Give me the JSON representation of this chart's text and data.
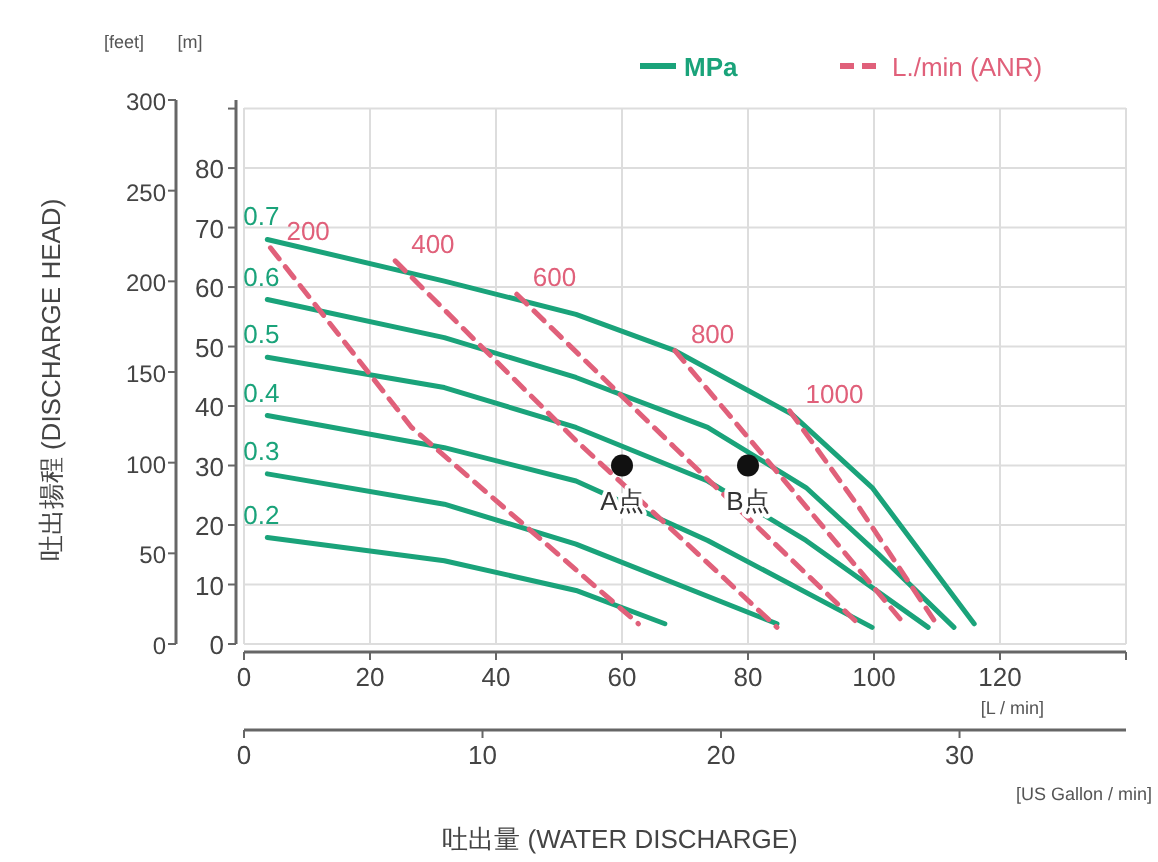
{
  "chart_data": {
    "type": "line",
    "xlabel": "吐出量 (WATER DISCHARGE)",
    "ylabel": "吐出揚程 (DISCHARGE HEAD)",
    "y2label": "[m]",
    "x2label": "[US Gallon / min]",
    "xlim": [
      0,
      140
    ],
    "xticks": [
      0,
      20,
      40,
      60,
      80,
      100,
      120,
      {
        "value": 140,
        "label": null
      }
    ],
    "ylim": [
      0,
      300
    ],
    "yticks": [
      0,
      50,
      100,
      150,
      200,
      250,
      300
    ],
    "y2lim": [
      0,
      91.44
    ],
    "y2ticks": [
      0,
      10,
      20,
      30,
      40,
      50,
      60,
      70,
      80,
      {
        "value": 90,
        "label": null
      }
    ],
    "x2lim": [
      0,
      36.98
    ],
    "x2ticks": [
      0,
      10,
      20,
      30
    ],
    "grid": true,
    "marker": "none",
    "annotations": [
      "MPa",
      "L./min (ANR)",
      "[feet]",
      "[L / min]"
    ],
    "series": [
      {
        "name": "0.7",
        "axis": "y2",
        "line_style": "solid",
        "color": "#1aa37a",
        "x": [
          3.7,
          31.8,
          52.7,
          68.4,
          87,
          99.7,
          115.9
        ],
        "values": [
          68,
          61,
          55.4,
          49.3,
          38.6,
          26.3,
          3.4
        ]
      },
      {
        "name": "0.6",
        "axis": "y2",
        "line_style": "solid",
        "color": "#1aa37a",
        "x": [
          3.7,
          31.8,
          52.7,
          73.6,
          89.2,
          100.7,
          112.7
        ],
        "values": [
          57.9,
          51.5,
          44.8,
          36.4,
          26.3,
          15.1,
          2.8
        ]
      },
      {
        "name": "0.5",
        "axis": "y2",
        "line_style": "solid",
        "color": "#1aa37a",
        "x": [
          3.7,
          31.8,
          52.7,
          73.6,
          89.2,
          108.6
        ],
        "values": [
          48.2,
          43.1,
          36.4,
          27.4,
          17.4,
          2.8
        ]
      },
      {
        "name": "0.4",
        "axis": "y2",
        "line_style": "solid",
        "color": "#1aa37a",
        "x": [
          3.7,
          31.8,
          52.7,
          73.6,
          99.7
        ],
        "values": [
          38.4,
          33,
          27.4,
          17.4,
          2.8
        ]
      },
      {
        "name": "0.3",
        "axis": "y2",
        "line_style": "solid",
        "color": "#1aa37a",
        "x": [
          3.7,
          31.8,
          52.7,
          84.6
        ],
        "values": [
          28.6,
          23.5,
          16.8,
          3.4
        ]
      },
      {
        "name": "0.2",
        "axis": "y2",
        "line_style": "solid",
        "color": "#1aa37a",
        "x": [
          3.7,
          31.8,
          52.7,
          66.8
        ],
        "values": [
          17.9,
          14,
          9,
          3.4
        ]
      },
      {
        "name": "200",
        "axis": "y2",
        "line_style": "dashed",
        "color": "#e0607a",
        "x": [
          4.2,
          26.6,
          62.6
        ],
        "values": [
          66.6,
          36.4,
          3.4
        ]
      },
      {
        "name": "400",
        "axis": "y2",
        "line_style": "dashed",
        "color": "#e0607a",
        "x": [
          24,
          52.7,
          84.6
        ],
        "values": [
          64.4,
          34.2,
          2.8
        ]
      },
      {
        "name": "600",
        "axis": "y2",
        "line_style": "dashed",
        "color": "#e0607a",
        "x": [
          43.3,
          68.4,
          98.1
        ],
        "values": [
          58.8,
          33,
          2.8
        ]
      },
      {
        "name": "800",
        "axis": "y2",
        "line_style": "dashed",
        "color": "#e0607a",
        "x": [
          68.4,
          84,
          104.4
        ],
        "values": [
          49.3,
          29.7,
          3.9
        ]
      },
      {
        "name": "1000",
        "axis": "y2",
        "line_style": "dashed",
        "color": "#e0607a",
        "x": [
          86.6,
          97.6,
          109.6
        ],
        "values": [
          39.2,
          23,
          3.9
        ]
      },
      {
        "name": "A点",
        "axis": "y2",
        "type": "scatter",
        "marker": "circle",
        "color": "#111111",
        "x": [
          60
        ],
        "values": [
          30
        ]
      },
      {
        "name": "B点",
        "axis": "y2",
        "type": "scatter",
        "marker": "circle",
        "color": "#111111",
        "x": [
          80
        ],
        "values": [
          30
        ]
      }
    ]
  }
}
